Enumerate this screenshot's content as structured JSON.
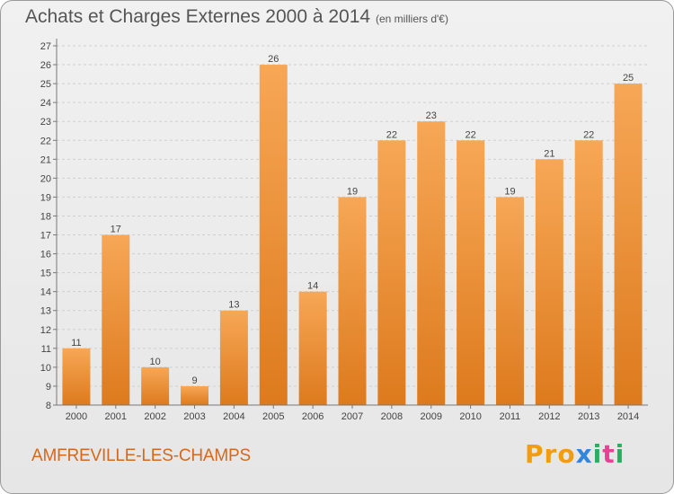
{
  "header": {
    "title": "Achats et Charges Externes 2000 à 2014",
    "subtitle": "(en milliers d'€)"
  },
  "footer": {
    "commune": "AMFREVILLE-LES-CHAMPS",
    "logo": [
      "P",
      "r",
      "o",
      "x",
      "i",
      "t",
      "i"
    ]
  },
  "colors": {
    "bar_light": "#f7a756",
    "bar_dark": "#dd7a1d",
    "grid": "#cfcfcf",
    "axis": "#777777",
    "commune_text": "#d2691e",
    "logo": [
      "#f39c12",
      "#f39c12",
      "#f39c12",
      "#2e86de",
      "#27ae60",
      "#e84393",
      "#27ae60"
    ]
  },
  "chart_data": {
    "type": "bar",
    "title": "Achats et Charges Externes 2000 à 2014",
    "categories": [
      "2000",
      "2001",
      "2002",
      "2003",
      "2004",
      "2005",
      "2006",
      "2007",
      "2008",
      "2009",
      "2010",
      "2011",
      "2012",
      "2013",
      "2014"
    ],
    "values": [
      11,
      17,
      10,
      9,
      13,
      26,
      14,
      19,
      22,
      23,
      22,
      19,
      21,
      22,
      25
    ],
    "ylim": [
      8,
      27
    ],
    "yticks": [
      8,
      9,
      10,
      11,
      12,
      13,
      14,
      15,
      16,
      17,
      18,
      19,
      20,
      21,
      22,
      23,
      24,
      25,
      26,
      27
    ],
    "grid": true,
    "xlabel": "",
    "ylabel": ""
  }
}
